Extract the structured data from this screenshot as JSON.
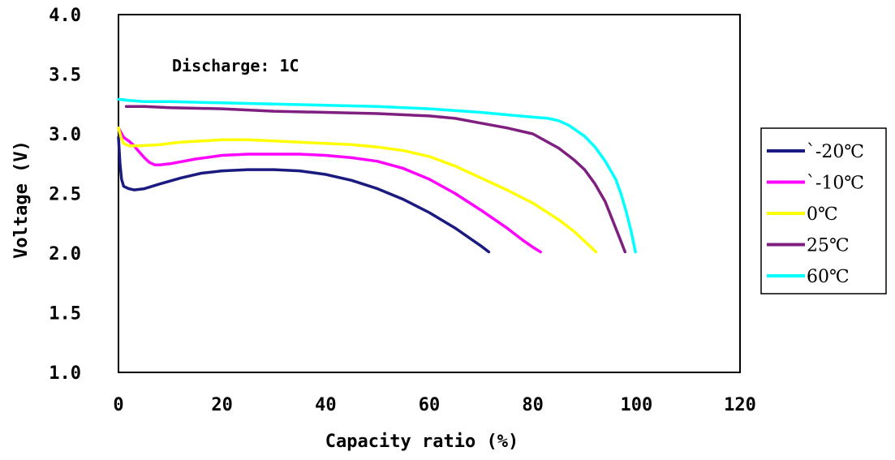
{
  "chart_data": {
    "type": "line",
    "title": "",
    "annotation": "Discharge: 1C",
    "xlabel": "Capacity ratio (%)",
    "ylabel": "Voltage (V)",
    "xlim": [
      0,
      120
    ],
    "ylim": [
      1.0,
      4.0
    ],
    "xticks": [
      "0",
      "20",
      "40",
      "60",
      "80",
      "100",
      "120"
    ],
    "yticks": [
      "1.0",
      "1.5",
      "2.0",
      "2.5",
      "3.0",
      "3.5",
      "4.0"
    ],
    "grid": false,
    "legend_position": "right",
    "series": [
      {
        "name": "`-20℃",
        "color": "#1a1a80",
        "x": [
          0,
          0.3,
          0.6,
          1,
          2,
          3,
          5,
          8,
          12,
          16,
          20,
          25,
          30,
          35,
          40,
          45,
          50,
          55,
          60,
          65,
          68,
          70,
          71.5
        ],
        "y": [
          2.97,
          2.75,
          2.62,
          2.56,
          2.54,
          2.53,
          2.54,
          2.58,
          2.63,
          2.67,
          2.69,
          2.7,
          2.7,
          2.69,
          2.66,
          2.61,
          2.54,
          2.45,
          2.34,
          2.21,
          2.12,
          2.06,
          2.01
        ]
      },
      {
        "name": "`-10℃",
        "color": "#ff00ff",
        "x": [
          0,
          1,
          2,
          3,
          4,
          5,
          6,
          7,
          8,
          10,
          15,
          20,
          25,
          30,
          35,
          40,
          45,
          50,
          55,
          60,
          65,
          70,
          75,
          78,
          80,
          81.5
        ],
        "y": [
          3.05,
          2.97,
          2.94,
          2.9,
          2.85,
          2.8,
          2.76,
          2.74,
          2.74,
          2.75,
          2.79,
          2.82,
          2.83,
          2.83,
          2.83,
          2.82,
          2.8,
          2.77,
          2.71,
          2.62,
          2.5,
          2.36,
          2.21,
          2.11,
          2.05,
          2.01
        ]
      },
      {
        "name": "0℃",
        "color": "#ffff00",
        "x": [
          0,
          0.5,
          1,
          2,
          4,
          8,
          12,
          16,
          20,
          25,
          30,
          35,
          40,
          45,
          50,
          55,
          60,
          65,
          70,
          75,
          80,
          85,
          88,
          90,
          92.2
        ],
        "y": [
          3.05,
          2.97,
          2.92,
          2.9,
          2.9,
          2.91,
          2.93,
          2.94,
          2.95,
          2.95,
          2.94,
          2.93,
          2.92,
          2.91,
          2.89,
          2.86,
          2.81,
          2.73,
          2.63,
          2.53,
          2.42,
          2.28,
          2.18,
          2.1,
          2.01
        ]
      },
      {
        "name": "25℃",
        "color": "#7f1f7f",
        "x": [
          1.5,
          5,
          10,
          20,
          30,
          40,
          50,
          60,
          65,
          70,
          75,
          80,
          85,
          88,
          90,
          92,
          94,
          95,
          96,
          97,
          97.8
        ],
        "y": [
          3.23,
          3.23,
          3.22,
          3.21,
          3.19,
          3.18,
          3.17,
          3.15,
          3.13,
          3.09,
          3.05,
          3.0,
          2.88,
          2.78,
          2.7,
          2.58,
          2.43,
          2.32,
          2.21,
          2.1,
          2.01
        ]
      },
      {
        "name": "60℃",
        "color": "#00ffff",
        "x": [
          0,
          2,
          5,
          10,
          20,
          30,
          40,
          50,
          60,
          70,
          75,
          80,
          83,
          85,
          87,
          90,
          92,
          94,
          96,
          97,
          98,
          99,
          99.8
        ],
        "y": [
          3.29,
          3.28,
          3.27,
          3.27,
          3.26,
          3.25,
          3.24,
          3.23,
          3.21,
          3.18,
          3.16,
          3.14,
          3.13,
          3.11,
          3.07,
          2.98,
          2.89,
          2.77,
          2.62,
          2.5,
          2.35,
          2.18,
          2.01
        ]
      }
    ]
  }
}
